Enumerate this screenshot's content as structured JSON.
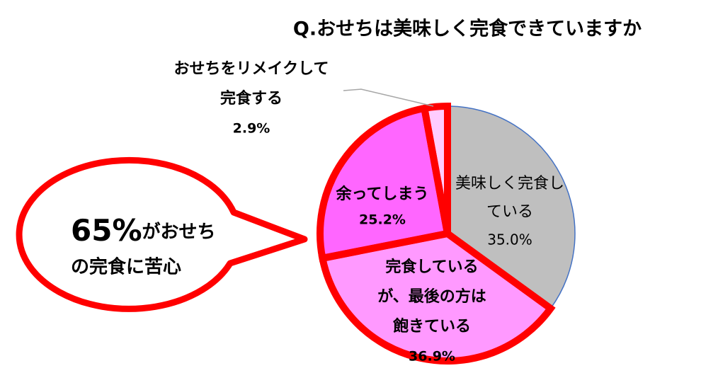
{
  "chart_data": {
    "type": "pie",
    "title": "Q.おせちは美味しく完食できていますか",
    "categories": [
      [
        "美味しく完食し",
        "ている"
      ],
      [
        "完食している",
        "が、最後の方は",
        "飽きている"
      ],
      [
        "余ってしまう"
      ],
      [
        "おせちをリメイクして",
        "完食する"
      ]
    ],
    "values": [
      35.0,
      36.9,
      25.2,
      2.9
    ],
    "value_labels": [
      "35.0%",
      "36.9%",
      "25.2%",
      "2.9%"
    ],
    "colors": [
      "#bfbfbf",
      "#ff99ff",
      "#ff66ff",
      "#ffccff"
    ],
    "outlined": [
      false,
      true,
      true,
      true
    ],
    "outline_color": "#ff0000",
    "annotation": {
      "highlight": "65%",
      "lines": [
        "がおせち",
        "の完食に苦心"
      ]
    }
  }
}
